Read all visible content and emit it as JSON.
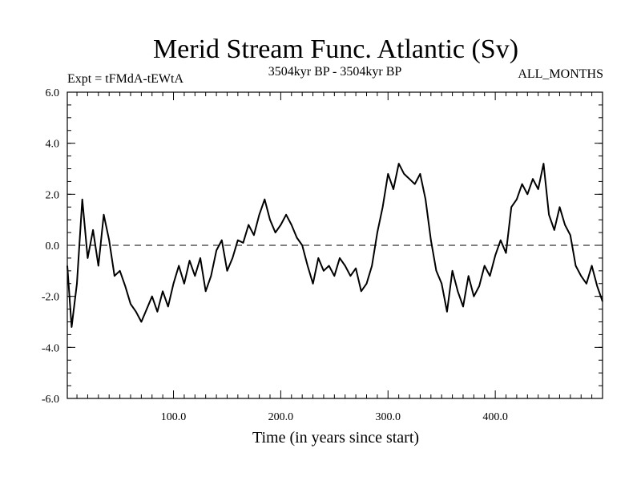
{
  "chart_data": {
    "type": "line",
    "title": "Merid Stream Func. Atlantic (Sv)",
    "experiment": "Expt = tFMdA-tEWtA",
    "period": "3504kyr BP - 3504kyr BP",
    "months": "ALL_MONTHS",
    "xlabel": "Time (in years since start)",
    "ylabel": "",
    "xlim": [
      1,
      500
    ],
    "ylim": [
      -6,
      6
    ],
    "x_ticks": [
      100,
      200,
      300,
      400
    ],
    "x_tick_labels": [
      "100.0",
      "200.0",
      "300.0",
      "400.0"
    ],
    "y_ticks": [
      -6,
      -4,
      -2,
      0,
      2,
      4,
      6
    ],
    "y_tick_labels": [
      "-6.0",
      "-4.0",
      "-2.0",
      "0.0",
      "2.0",
      "4.0",
      "6.0"
    ],
    "reference_line": 0,
    "series": [
      {
        "name": "Merid Stream Func. Atlantic",
        "color": "#000000",
        "x": [
          1,
          5,
          10,
          15,
          20,
          25,
          30,
          35,
          40,
          45,
          50,
          55,
          60,
          65,
          70,
          75,
          80,
          85,
          90,
          95,
          100,
          105,
          110,
          115,
          120,
          125,
          130,
          135,
          140,
          145,
          150,
          155,
          160,
          165,
          170,
          175,
          180,
          185,
          190,
          195,
          200,
          205,
          210,
          215,
          220,
          225,
          230,
          235,
          240,
          245,
          250,
          255,
          260,
          265,
          270,
          275,
          280,
          285,
          290,
          295,
          300,
          305,
          310,
          315,
          320,
          325,
          330,
          335,
          340,
          345,
          350,
          355,
          360,
          365,
          370,
          375,
          380,
          385,
          390,
          395,
          400,
          405,
          410,
          415,
          420,
          425,
          430,
          435,
          440,
          445,
          450,
          455,
          460,
          465,
          470,
          475,
          480,
          485,
          490,
          495,
          500
        ],
        "values": [
          -0.8,
          -3.2,
          -1.5,
          1.8,
          -0.5,
          0.6,
          -0.8,
          1.2,
          0.2,
          -1.2,
          -1.0,
          -1.6,
          -2.3,
          -2.6,
          -3.0,
          -2.5,
          -2.0,
          -2.6,
          -1.8,
          -2.4,
          -1.5,
          -0.8,
          -1.5,
          -0.6,
          -1.2,
          -0.5,
          -1.8,
          -1.2,
          -0.2,
          0.2,
          -1.0,
          -0.5,
          0.2,
          0.1,
          0.8,
          0.4,
          1.2,
          1.8,
          1.0,
          0.5,
          0.8,
          1.2,
          0.8,
          0.3,
          0.0,
          -0.8,
          -1.5,
          -0.5,
          -1.0,
          -0.8,
          -1.2,
          -0.5,
          -0.8,
          -1.2,
          -0.9,
          -1.8,
          -1.5,
          -0.8,
          0.5,
          1.5,
          2.8,
          2.2,
          3.2,
          2.8,
          2.6,
          2.4,
          2.8,
          1.8,
          0.2,
          -1.0,
          -1.5,
          -2.6,
          -1.0,
          -1.8,
          -2.4,
          -1.2,
          -2.0,
          -1.6,
          -0.8,
          -1.2,
          -0.4,
          0.2,
          -0.3,
          1.5,
          1.8,
          2.4,
          2.0,
          2.6,
          2.2,
          3.2,
          1.2,
          0.6,
          1.5,
          0.8,
          0.4,
          -0.8,
          -1.2,
          -1.5,
          -0.8,
          -1.6,
          -2.2
        ]
      }
    ]
  }
}
